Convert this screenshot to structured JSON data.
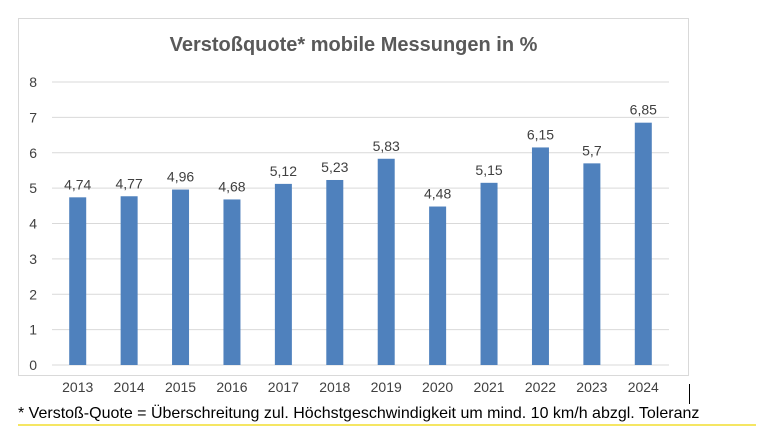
{
  "chart_data": {
    "type": "bar",
    "title": "Verstoßquote* mobile Messungen in %",
    "categories": [
      "2013",
      "2014",
      "2015",
      "2016",
      "2017",
      "2018",
      "2019",
      "2020",
      "2021",
      "2022",
      "2023",
      "2024"
    ],
    "values": [
      4.74,
      4.77,
      4.96,
      4.68,
      5.12,
      5.23,
      5.83,
      4.48,
      5.15,
      6.15,
      5.7,
      6.85
    ],
    "value_labels": [
      "4,74",
      "4,77",
      "4,96",
      "4,68",
      "5,12",
      "5,23",
      "5,83",
      "4,48",
      "5,15",
      "6,15",
      "5,7",
      "6,85"
    ],
    "ylim": [
      0,
      8
    ],
    "yticks": [
      0,
      1,
      2,
      3,
      4,
      5,
      6,
      7,
      8
    ],
    "grid": true,
    "bar_color": "#4f81bd",
    "grid_color": "#d9d9d9",
    "xlabel": "",
    "ylabel": ""
  },
  "footnote": "* Verstoß-Quote = Überschreitung zul. Höchstgeschwindigkeit um mind. 10 km/h abzgl. Toleranz"
}
